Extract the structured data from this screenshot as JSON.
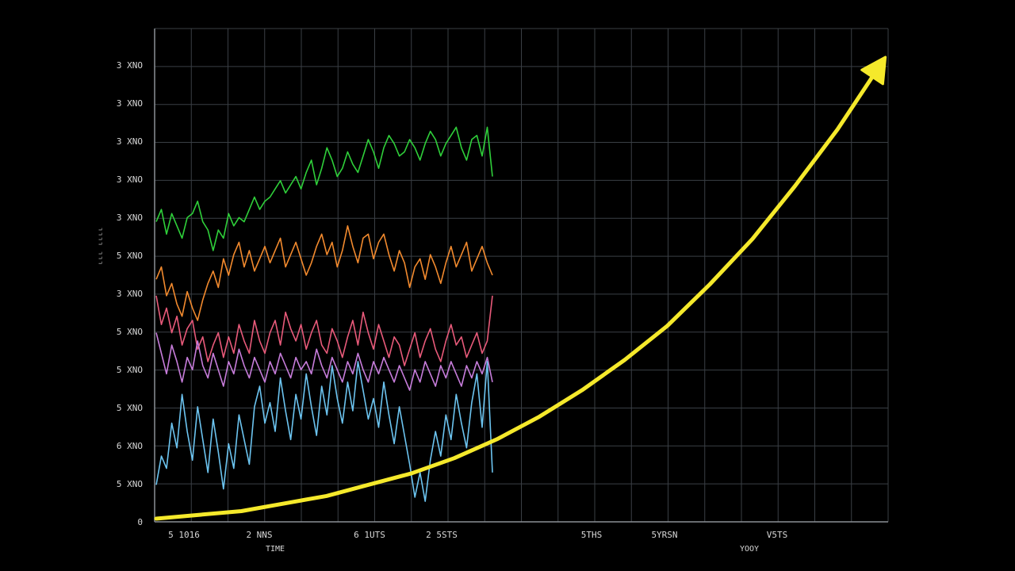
{
  "chart_data": {
    "type": "line",
    "title": "",
    "ylabel": "ᴸᴸᴸ ᴸᴸᴸᴸ",
    "xlabel": "TIME",
    "xlabel_right": "YOOY",
    "yticks": [
      "0",
      "5 XNO",
      "6 XNO",
      "5 XNO",
      "5 XNO",
      "5 XNO",
      "3 XNO",
      "5 XNO",
      "3 XNO",
      "3 XNO",
      "3 XNO",
      "3 XNO",
      "3 XNO"
    ],
    "xticks": [
      "5 1016",
      "2 NNS",
      "6 1UTS",
      "2 5STS",
      "5THS",
      "5YRSN",
      "V5TS"
    ],
    "grid": true,
    "colors": {
      "background": "#000000",
      "grid": "#3a3f45",
      "trend": "#f5e92b"
    },
    "series": [
      {
        "color": "#2fcf3a",
        "values": [
          7.3,
          7.6,
          7.0,
          7.5,
          7.2,
          6.9,
          7.4,
          7.5,
          7.8,
          7.3,
          7.1,
          6.6,
          7.1,
          6.9,
          7.5,
          7.2,
          7.4,
          7.3,
          7.6,
          7.9,
          7.6,
          7.8,
          7.9,
          8.1,
          8.3,
          8.0,
          8.2,
          8.4,
          8.1,
          8.5,
          8.8,
          8.2,
          8.6,
          9.1,
          8.8,
          8.4,
          8.6,
          9.0,
          8.7,
          8.5,
          8.9,
          9.3,
          9.0,
          8.6,
          9.1,
          9.4,
          9.2,
          8.9,
          9.0,
          9.3,
          9.1,
          8.8,
          9.2,
          9.5,
          9.3,
          8.9,
          9.2,
          9.4,
          9.6,
          9.1,
          8.8,
          9.3,
          9.4,
          8.9,
          9.6,
          8.4
        ]
      },
      {
        "color": "#f28a2e",
        "values": [
          5.9,
          6.2,
          5.5,
          5.8,
          5.3,
          5.0,
          5.6,
          5.2,
          4.9,
          5.4,
          5.8,
          6.1,
          5.7,
          6.4,
          6.0,
          6.5,
          6.8,
          6.2,
          6.6,
          6.1,
          6.4,
          6.7,
          6.3,
          6.6,
          6.9,
          6.2,
          6.5,
          6.8,
          6.4,
          6.0,
          6.3,
          6.7,
          7.0,
          6.5,
          6.8,
          6.2,
          6.6,
          7.2,
          6.7,
          6.3,
          6.9,
          7.0,
          6.4,
          6.8,
          7.0,
          6.5,
          6.1,
          6.6,
          6.3,
          5.7,
          6.2,
          6.4,
          5.9,
          6.5,
          6.2,
          5.8,
          6.3,
          6.7,
          6.2,
          6.5,
          6.8,
          6.1,
          6.4,
          6.7,
          6.3,
          6.0
        ]
      },
      {
        "color": "#e85a7a",
        "values": [
          5.5,
          4.8,
          5.2,
          4.6,
          5.0,
          4.3,
          4.7,
          4.9,
          4.2,
          4.5,
          3.9,
          4.3,
          4.6,
          4.0,
          4.5,
          4.1,
          4.8,
          4.4,
          4.1,
          4.9,
          4.4,
          4.1,
          4.6,
          4.9,
          4.3,
          5.1,
          4.7,
          4.4,
          4.8,
          4.2,
          4.6,
          4.9,
          4.3,
          4.1,
          4.7,
          4.4,
          4.0,
          4.5,
          4.9,
          4.3,
          5.1,
          4.6,
          4.2,
          4.8,
          4.4,
          4.0,
          4.5,
          4.3,
          3.8,
          4.2,
          4.6,
          4.0,
          4.4,
          4.7,
          4.2,
          3.9,
          4.4,
          4.8,
          4.3,
          4.5,
          4.0,
          4.3,
          4.6,
          4.1,
          4.4,
          5.5
        ]
      },
      {
        "color": "#c77ddb",
        "values": [
          4.6,
          4.1,
          3.6,
          4.3,
          3.9,
          3.4,
          4.0,
          3.7,
          4.4,
          3.8,
          3.5,
          4.1,
          3.7,
          3.3,
          3.9,
          3.6,
          4.2,
          3.8,
          3.5,
          4.0,
          3.7,
          3.4,
          3.9,
          3.6,
          4.1,
          3.8,
          3.5,
          4.0,
          3.7,
          3.9,
          3.6,
          4.2,
          3.8,
          3.5,
          4.0,
          3.7,
          3.4,
          3.9,
          3.6,
          4.1,
          3.7,
          3.4,
          3.9,
          3.6,
          4.0,
          3.7,
          3.4,
          3.8,
          3.5,
          3.2,
          3.7,
          3.4,
          3.9,
          3.6,
          3.3,
          3.8,
          3.5,
          3.9,
          3.6,
          3.3,
          3.8,
          3.5,
          3.9,
          3.6,
          4.0,
          3.4
        ]
      },
      {
        "color": "#6cc4f0",
        "values": [
          0.9,
          1.6,
          1.3,
          2.4,
          1.8,
          3.1,
          2.2,
          1.5,
          2.8,
          2.0,
          1.2,
          2.5,
          1.7,
          0.8,
          1.9,
          1.3,
          2.6,
          2.0,
          1.4,
          2.8,
          3.3,
          2.4,
          2.9,
          2.2,
          3.5,
          2.7,
          2.0,
          3.1,
          2.5,
          3.6,
          2.8,
          2.1,
          3.3,
          2.6,
          3.8,
          3.0,
          2.4,
          3.4,
          2.7,
          3.9,
          3.2,
          2.5,
          3.0,
          2.3,
          3.4,
          2.6,
          1.9,
          2.8,
          2.1,
          1.4,
          0.6,
          1.2,
          0.5,
          1.5,
          2.2,
          1.6,
          2.6,
          2.0,
          3.1,
          2.4,
          1.8,
          2.9,
          3.6,
          2.3,
          3.9,
          1.2
        ]
      }
    ],
    "trend": {
      "color": "#f5e92b",
      "values": [
        0.0,
        0.1,
        0.2,
        0.4,
        0.6,
        0.9,
        1.2,
        1.6,
        2.1,
        2.7,
        3.4,
        4.2,
        5.1,
        6.2,
        7.4,
        8.8,
        10.3,
        12.0
      ]
    }
  }
}
